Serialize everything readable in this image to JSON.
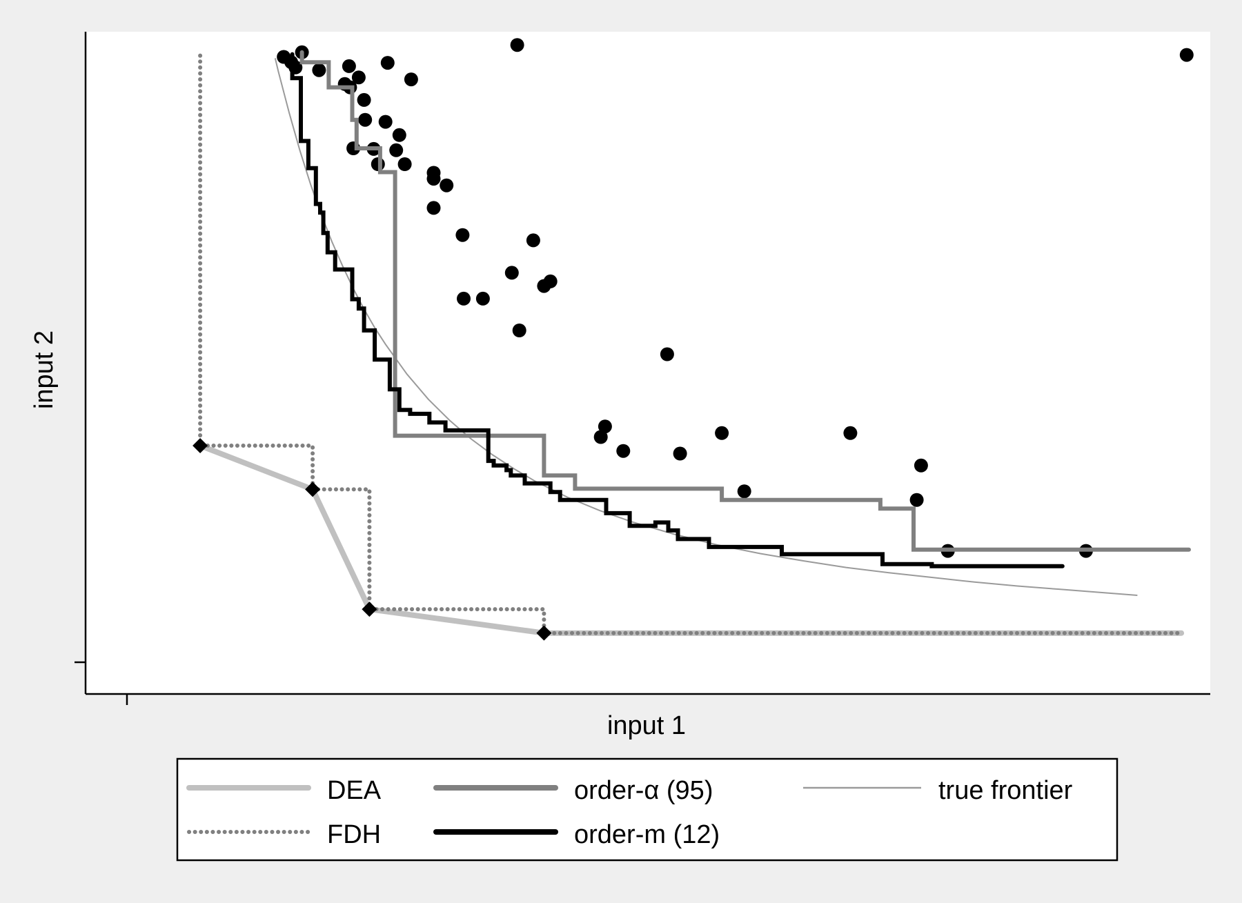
{
  "chart_data": {
    "type": "line",
    "title": "",
    "xlabel": "input 1",
    "ylabel": "input 2",
    "xlim": [
      0,
      105
    ],
    "ylim": [
      0,
      100
    ],
    "grid": false,
    "legend_position": "bottom",
    "colors": {
      "background": "#efefef",
      "plot_area": "#ffffff",
      "dea": "#c0c0c0",
      "fdh": "#808080",
      "order_alpha": "#808080",
      "order_m": "#000000",
      "true_frontier": "#9a9a9a",
      "points": "#000000"
    },
    "points": [
      [
        18.5,
        96.2
      ],
      [
        19.2,
        95.4
      ],
      [
        19.6,
        94.6
      ],
      [
        20.2,
        96.9
      ],
      [
        21.8,
        94.2
      ],
      [
        24.2,
        92.1
      ],
      [
        24.6,
        94.8
      ],
      [
        24.7,
        91.6
      ],
      [
        25.0,
        82.4
      ],
      [
        25.5,
        93.1
      ],
      [
        26.0,
        89.7
      ],
      [
        26.1,
        86.7
      ],
      [
        26.9,
        82.3
      ],
      [
        27.3,
        80.0
      ],
      [
        28.0,
        86.4
      ],
      [
        28.2,
        95.3
      ],
      [
        29.0,
        82.1
      ],
      [
        29.3,
        84.4
      ],
      [
        29.8,
        80.0
      ],
      [
        30.4,
        92.8
      ],
      [
        32.5,
        77.8
      ],
      [
        32.5,
        78.7
      ],
      [
        32.5,
        73.4
      ],
      [
        33.7,
        76.8
      ],
      [
        35.2,
        69.3
      ],
      [
        35.3,
        59.7
      ],
      [
        37.1,
        59.7
      ],
      [
        39.8,
        63.6
      ],
      [
        40.3,
        98.0
      ],
      [
        40.5,
        54.9
      ],
      [
        41.8,
        68.5
      ],
      [
        42.8,
        61.6
      ],
      [
        43.4,
        62.3
      ],
      [
        48.1,
        38.8
      ],
      [
        48.5,
        40.4
      ],
      [
        50.2,
        36.7
      ],
      [
        54.3,
        51.3
      ],
      [
        55.5,
        36.3
      ],
      [
        59.4,
        39.4
      ],
      [
        61.5,
        30.6
      ],
      [
        71.4,
        39.4
      ],
      [
        77.6,
        29.3
      ],
      [
        78.0,
        34.5
      ],
      [
        80.5,
        21.6
      ],
      [
        93.4,
        21.6
      ],
      [
        102.8,
        96.5
      ]
    ],
    "series": [
      {
        "name": "DEA",
        "style": "solid-thick",
        "x": [
          10.7,
          21.2,
          26.5,
          42.8,
          102.3
        ],
        "y": [
          37.5,
          30.9,
          12.8,
          9.2,
          9.2
        ]
      },
      {
        "name": "FDH",
        "style": "dotted",
        "x": [
          10.7,
          10.7,
          21.2,
          21.2,
          26.5,
          26.5,
          42.8,
          42.8,
          102.3
        ],
        "y": [
          96.4,
          37.5,
          37.5,
          30.9,
          30.9,
          12.8,
          12.8,
          9.2,
          9.2
        ],
        "markers_x": [
          10.7,
          21.2,
          26.5,
          42.8
        ],
        "markers_y": [
          37.5,
          30.9,
          12.8,
          9.2
        ]
      },
      {
        "name": "order-α (95)",
        "style": "step-thick",
        "x": [
          20.2,
          20.2,
          22.7,
          22.7,
          24.9,
          24.9,
          25.3,
          25.3,
          27.5,
          27.5,
          28.9,
          28.9,
          42.8,
          42.8,
          45.7,
          45.7,
          59.4,
          59.4,
          74.2,
          74.2,
          77.3,
          77.3,
          80.1,
          80.1,
          103.0
        ],
        "y": [
          96.9,
          95.4,
          95.4,
          91.6,
          91.6,
          86.7,
          86.7,
          82.4,
          82.4,
          78.8,
          78.8,
          39.0,
          39.0,
          33.0,
          33.0,
          31.0,
          31.0,
          29.3,
          29.3,
          28.0,
          28.0,
          21.8,
          21.8,
          21.8,
          21.8
        ]
      },
      {
        "name": "order-m (12)",
        "style": "step-thick",
        "x": [
          19.3,
          19.3,
          20.1,
          20.1,
          20.8,
          20.8,
          21.5,
          21.5,
          21.9,
          21.9,
          22.2,
          22.2,
          22.6,
          22.6,
          23.3,
          23.3,
          24.9,
          24.9,
          25.5,
          25.5,
          26.0,
          26.0,
          27.0,
          27.0,
          28.4,
          28.4,
          29.3,
          29.3,
          30.3,
          30.3,
          32.1,
          32.1,
          33.6,
          33.6,
          37.6,
          37.6,
          38.1,
          38.1,
          39.3,
          39.3,
          39.7,
          39.7,
          41.0,
          41.0,
          43.4,
          43.4,
          44.3,
          44.3,
          48.6,
          48.6,
          50.8,
          50.8,
          53.2,
          53.2,
          54.4,
          54.4,
          55.3,
          55.3,
          58.2,
          58.2,
          65.0,
          65.0,
          74.4,
          74.4,
          79.0,
          79.0,
          91.2
        ],
        "y": [
          96.6,
          93.0,
          93.0,
          83.5,
          83.5,
          79.4,
          79.4,
          74.0,
          74.0,
          72.7,
          72.7,
          69.6,
          69.6,
          66.7,
          66.7,
          64.1,
          64.1,
          59.6,
          59.6,
          58.2,
          58.2,
          54.9,
          54.9,
          50.5,
          50.5,
          46.0,
          46.0,
          42.9,
          42.9,
          42.3,
          42.3,
          41.0,
          41.0,
          39.8,
          39.8,
          35.2,
          35.2,
          34.5,
          34.5,
          33.8,
          33.8,
          33.0,
          33.0,
          31.8,
          31.8,
          30.5,
          30.5,
          29.3,
          29.3,
          27.3,
          27.3,
          25.4,
          25.4,
          25.9,
          25.9,
          24.7,
          24.7,
          23.4,
          23.4,
          22.2,
          22.2,
          21.1,
          21.1,
          19.6,
          19.6,
          19.3,
          19.3
        ]
      },
      {
        "name": "true frontier",
        "style": "solid-thin",
        "x": [
          17.7,
          18,
          19,
          20,
          21,
          22,
          23,
          24,
          25,
          26,
          27,
          28,
          30,
          32,
          34,
          36,
          38,
          40,
          42,
          45,
          48,
          51,
          55,
          59,
          63,
          67,
          71,
          75,
          79,
          83,
          87,
          91,
          95,
          98.2
        ],
        "y": [
          96.0,
          94.0,
          87.8,
          82.1,
          77.0,
          72.4,
          68.3,
          64.6,
          61.2,
          58.1,
          55.3,
          52.8,
          48.3,
          44.5,
          41.3,
          38.5,
          36.1,
          34.0,
          32.1,
          29.7,
          27.7,
          26.0,
          24.1,
          22.5,
          21.2,
          20.1,
          19.1,
          18.3,
          17.6,
          16.9,
          16.3,
          15.8,
          15.3,
          14.9
        ]
      }
    ]
  }
}
